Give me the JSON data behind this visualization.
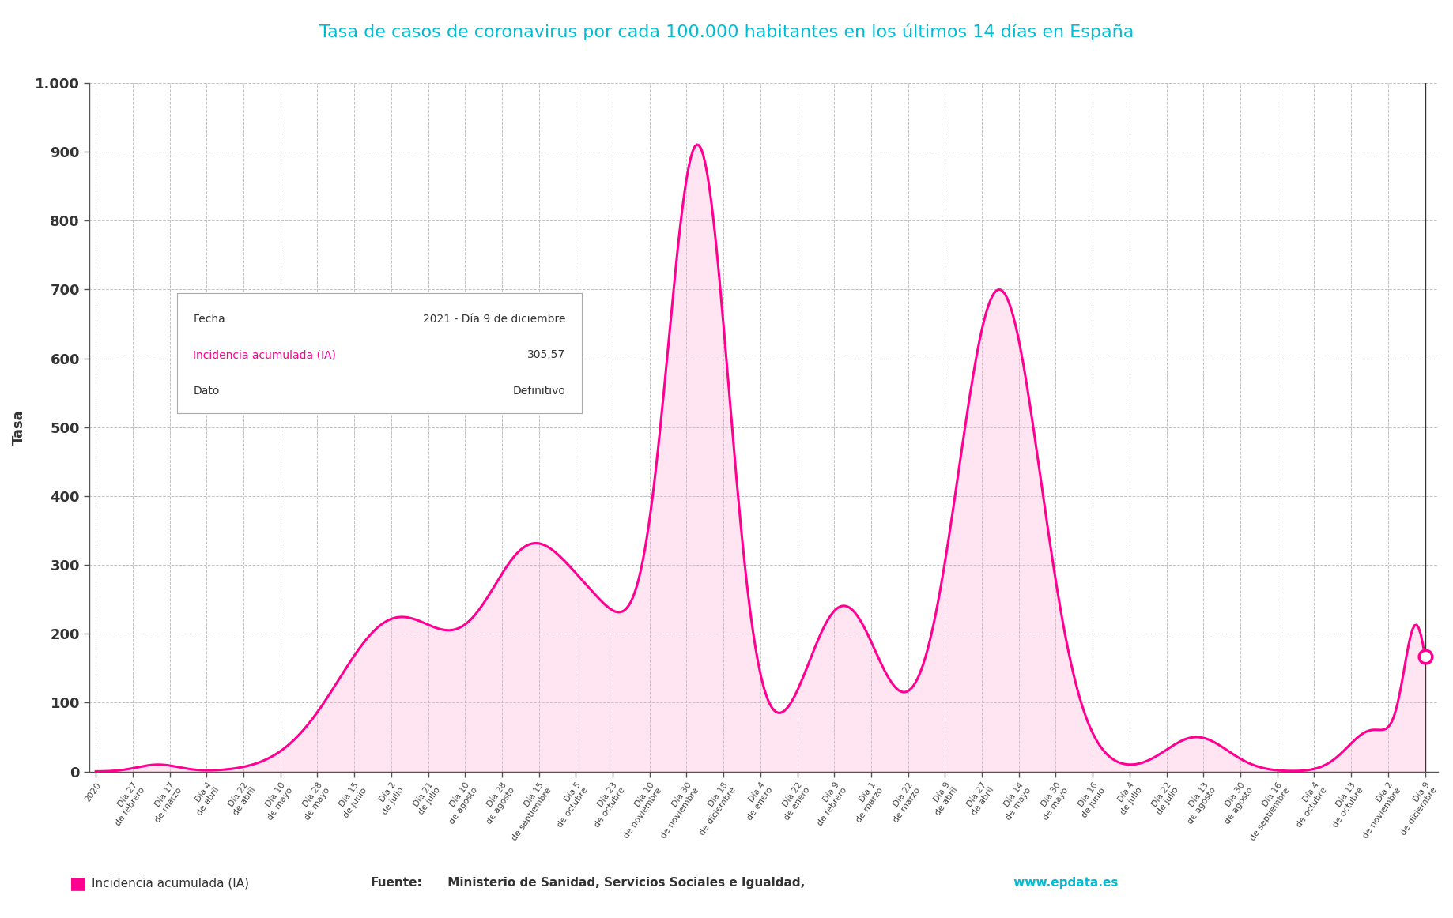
{
  "title": "Tasa de casos de coronavirus por cada 100.000 habitantes en los últimos 14 días en España",
  "title_color": "#00bcd4",
  "ylabel": "Tasa",
  "line_color": "#FF0090",
  "fill_color": "#FFB3D9",
  "fill_alpha": 0.35,
  "background_color": "#ffffff",
  "grid_color": "#bbbbbb",
  "ylim": [
    0,
    1000
  ],
  "ytick_values": [
    0,
    100,
    200,
    300,
    400,
    500,
    600,
    700,
    800,
    900,
    1000
  ],
  "ytick_labels": [
    "0",
    "100",
    "200",
    "300",
    "400",
    "500",
    "600",
    "700",
    "800",
    "900",
    "1.000"
  ],
  "legend_label": "Incidencia acumulada (IA)",
  "source_bold": "Fuente:",
  "source_text": " Ministerio de Sanidad, Servicios Sociales e Igualdad,",
  "source_url": " www.epdata.es",
  "source_url_color": "#00bcd4",
  "tooltip_fecha": "2021 - Día 9 de diciembre",
  "tooltip_ia": "305,57",
  "tooltip_dato": "Definitivo",
  "x_labels": [
    "2020",
    "Día 27\nde febrero",
    "Día 17\nde marzo",
    "Día 4\nde abril",
    "Día 22\nde abril",
    "Día 10\nde mayo",
    "Día 28\nde mayo",
    "Día 15\nde junio",
    "Día 2\nde julio",
    "Día 21\nde julio",
    "Día 10\nde agosto",
    "Día 28\nde agosto",
    "Día 15\nde septiembre",
    "Día 5\nde octubre",
    "Día 23\nde octubre",
    "Día 10\nde noviembre",
    "Día 30\nde noviembre",
    "Día 18\nde diciembre",
    "Día 4\nde enero",
    "Día 22\nde enero",
    "Día 9\nde febrero",
    "Día 1\nde marzo",
    "Día 22\nde marzo",
    "Día 9\nde abril",
    "Día 27\nde abril",
    "Día 14\nde mayo",
    "Día 30\nde mayo",
    "Día 16\nde junio",
    "Día 4\nde julio",
    "Día 22\nde julio",
    "Día 13\nde agosto",
    "Día 30\nde agosto",
    "Día 16\nde septiembre",
    "Día 4\nde octubre",
    "Día 13\nde octubre",
    "Día 2\nde noviembre",
    "Día 9\nde diciembre"
  ]
}
